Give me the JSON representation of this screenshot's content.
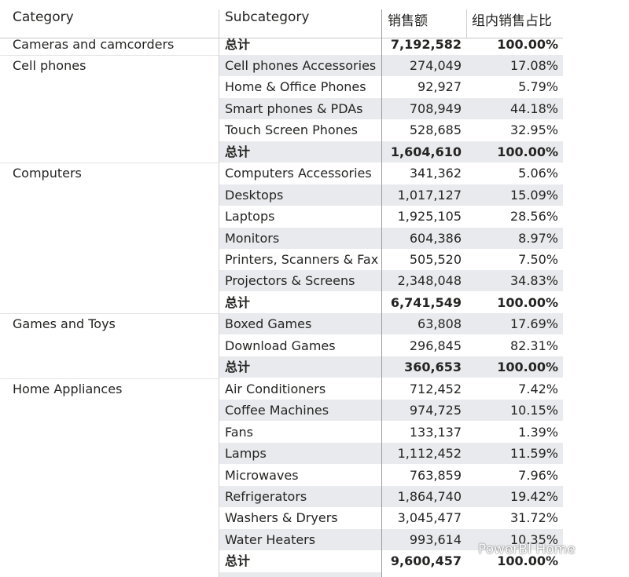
{
  "header": [
    "Category",
    "Subcategory",
    "销售额",
    "组内销售占比"
  ],
  "groups": [
    {
      "category": "Cameras and camcorders",
      "rows": [],
      "total": [
        "总计",
        "7,192,582",
        "100.00%"
      ]
    },
    {
      "category": "Cell phones",
      "rows": [
        [
          "Cell phones Accessories",
          "274,049",
          "17.08%"
        ],
        [
          "Home & Office Phones",
          "92,927",
          "5.79%"
        ],
        [
          "Smart phones & PDAs",
          "708,949",
          "44.18%"
        ],
        [
          "Touch Screen Phones",
          "528,685",
          "32.95%"
        ]
      ],
      "total": [
        "总计",
        "1,604,610",
        "100.00%"
      ]
    },
    {
      "category": "Computers",
      "rows": [
        [
          "Computers Accessories",
          "341,362",
          "5.06%"
        ],
        [
          "Desktops",
          "1,017,127",
          "15.09%"
        ],
        [
          "Laptops",
          "1,925,105",
          "28.56%"
        ],
        [
          "Monitors",
          "604,386",
          "8.97%"
        ],
        [
          "Printers, Scanners & Fax",
          "505,520",
          "7.50%"
        ],
        [
          "Projectors & Screens",
          "2,348,048",
          "34.83%"
        ]
      ],
      "total": [
        "总计",
        "6,741,549",
        "100.00%"
      ]
    },
    {
      "category": "Games and Toys",
      "rows": [
        [
          "Boxed Games",
          "63,808",
          "17.69%"
        ],
        [
          "Download Games",
          "296,845",
          "82.31%"
        ]
      ],
      "total": [
        "总计",
        "360,653",
        "100.00%"
      ]
    },
    {
      "category": "Home Appliances",
      "rows": [
        [
          "Air Conditioners",
          "712,452",
          "7.42%"
        ],
        [
          "Coffee Machines",
          "974,725",
          "10.15%"
        ],
        [
          "Fans",
          "133,137",
          "1.39%"
        ],
        [
          "Lamps",
          "1,112,452",
          "11.59%"
        ],
        [
          "Microwaves",
          "763,859",
          "7.96%"
        ],
        [
          "Refrigerators",
          "1,864,740",
          "19.42%"
        ],
        [
          "Washers & Dryers",
          "3,045,477",
          "31.72%"
        ],
        [
          "Water Heaters",
          "993,614",
          "10.35%"
        ]
      ],
      "total": [
        "总计",
        "9,600,457",
        "100.00%"
      ]
    }
  ],
  "watermark": "PowerBI Home"
}
